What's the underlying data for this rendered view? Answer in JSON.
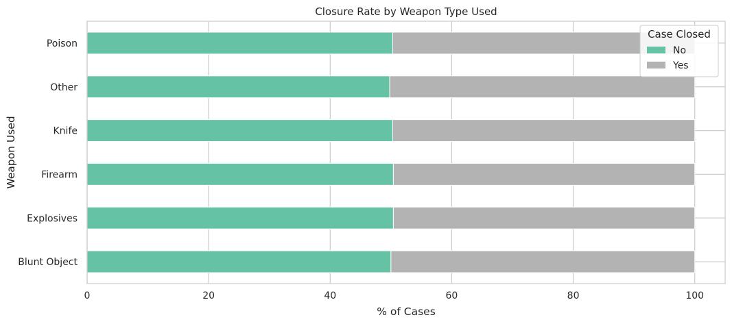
{
  "chart_data": {
    "type": "bar",
    "orientation": "horizontal",
    "stacked": true,
    "title": "Closure Rate by Weapon Type Used",
    "xlabel": "% of Cases",
    "ylabel": "Weapon Used",
    "xlim": [
      0,
      105
    ],
    "xticks": [
      0,
      20,
      40,
      60,
      80,
      100
    ],
    "categories": [
      "Blunt Object",
      "Explosives",
      "Firearm",
      "Knife",
      "Other",
      "Poison"
    ],
    "series": [
      {
        "name": "No",
        "color": "#66c2a5",
        "values": [
          50.0,
          50.4,
          50.4,
          50.3,
          49.8,
          50.3
        ]
      },
      {
        "name": "Yes",
        "color": "#b3b3b3",
        "values": [
          50.0,
          49.6,
          49.6,
          49.7,
          50.2,
          49.7
        ]
      }
    ],
    "legend": {
      "title": "Case Closed",
      "position": "top-right"
    },
    "grid": true
  }
}
